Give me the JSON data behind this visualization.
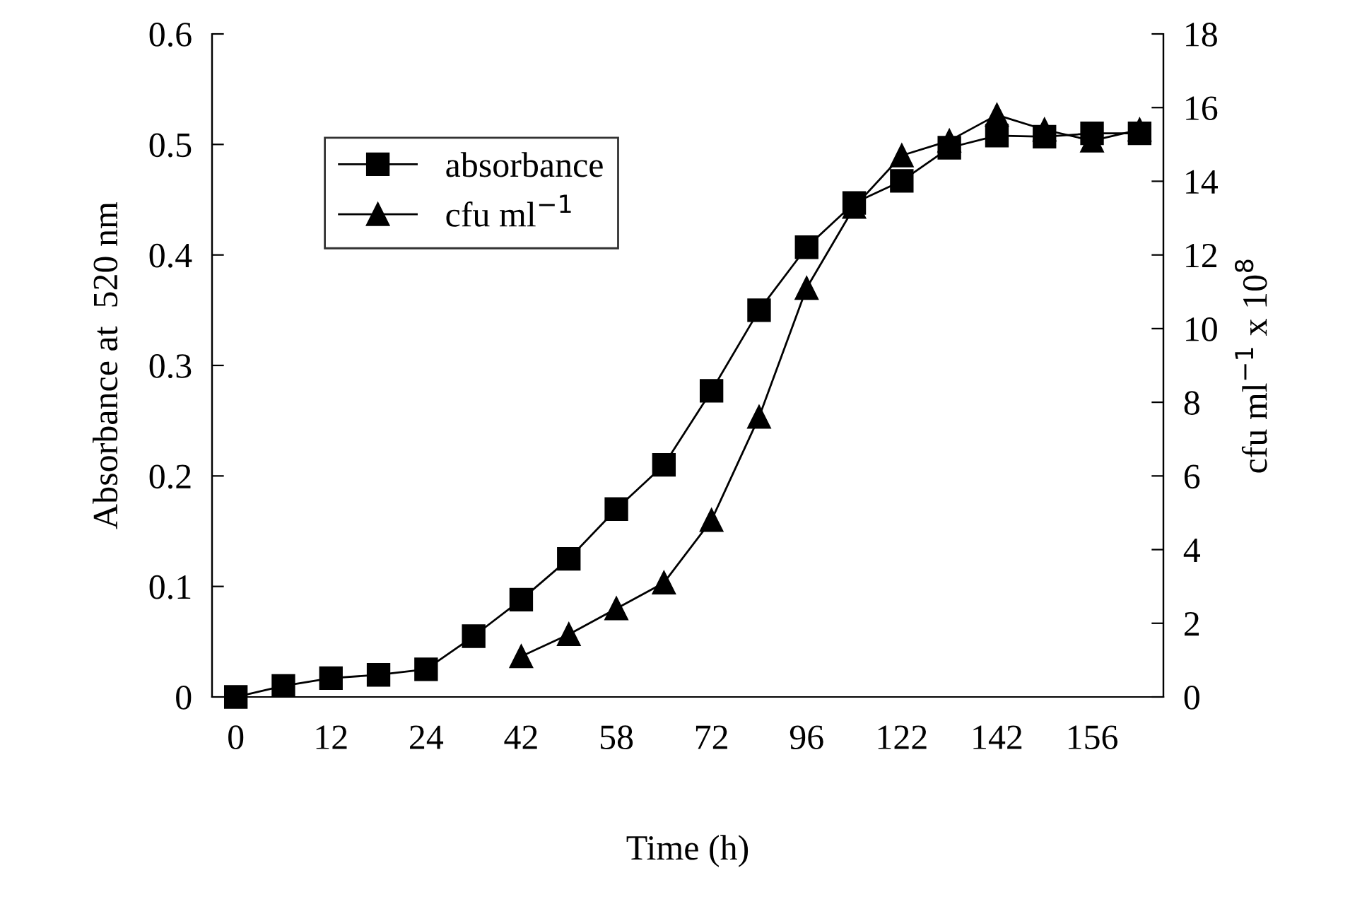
{
  "chart_data": {
    "type": "line",
    "xlabel": "Time (h)",
    "ylabel": "Absorbance at  520 nm",
    "y2label": "cfu ml$^{−1}$ x 10$^{8}$",
    "categories": [
      "0",
      null,
      "12",
      null,
      "24",
      null,
      "42",
      null,
      "58",
      null,
      "72",
      null,
      "96",
      null,
      "122",
      null,
      "142",
      null,
      "156",
      null
    ],
    "series": [
      {
        "name": "absorbance",
        "color": "#000000",
        "marker": "square",
        "values": [
          0,
          0.01,
          0.017,
          0.02,
          0.025,
          0.055,
          0.088,
          0.125,
          0.17,
          0.21,
          0.277,
          0.35,
          0.407,
          0.447,
          0.467,
          0.497,
          0.508,
          0.507,
          0.51,
          0.51
        ]
      },
      {
        "name": "cfu ml$^{−1}$",
        "color": "#000000",
        "marker": "triangle",
        "axis": "y2",
        "values": [
          null,
          null,
          null,
          null,
          null,
          null,
          1.1,
          1.7,
          2.4,
          3.1,
          4.8,
          7.6,
          11.1,
          13.3,
          14.7,
          15.1,
          15.8,
          15.4,
          15.1,
          15.4
        ]
      }
    ],
    "ylim": [
      0,
      0.6
    ],
    "yticks": [
      0,
      0.1,
      0.2,
      0.3,
      0.4,
      0.5,
      0.6
    ],
    "y2lim": [
      0,
      18
    ],
    "y2ticks": [
      0,
      2,
      4,
      6,
      8,
      10,
      12,
      14,
      16,
      18
    ],
    "grid": false,
    "legend": "top left",
    "line_style": "solid"
  }
}
